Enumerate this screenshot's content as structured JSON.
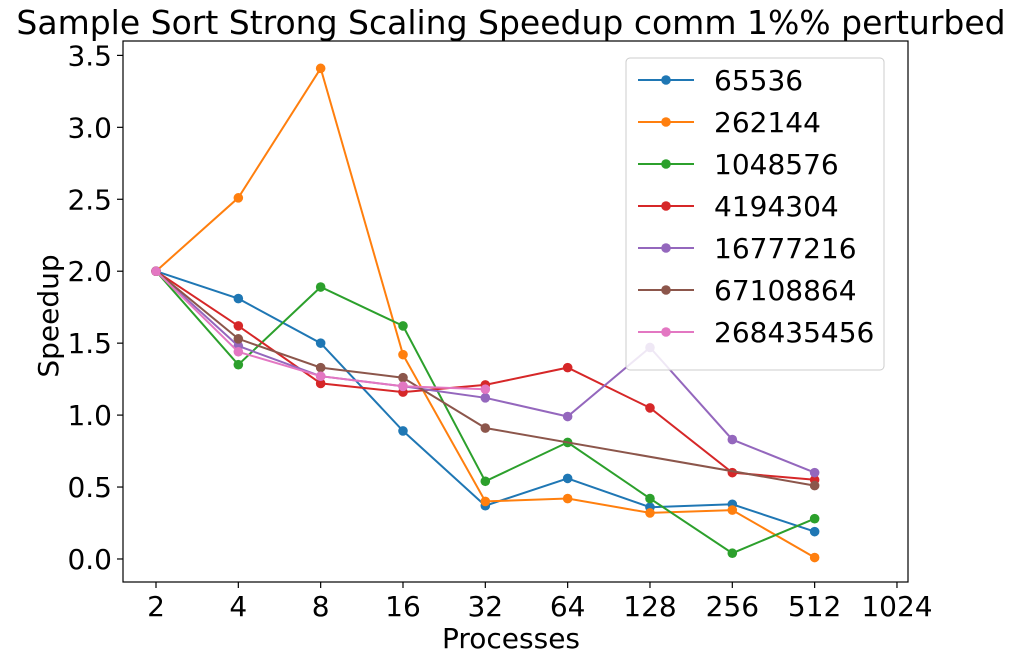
{
  "chart_data": {
    "type": "line",
    "title": "Sample Sort Strong Scaling Speedup comm 1%% perturbed",
    "xlabel": "Processes",
    "ylabel": "Speedup",
    "x_scale": "log2",
    "x_ticks": [
      2,
      4,
      8,
      16,
      32,
      64,
      128,
      256,
      512,
      1024
    ],
    "x_tick_labels": [
      "2",
      "4",
      "8",
      "16",
      "32",
      "64",
      "128",
      "256",
      "512",
      "1024"
    ],
    "y_ticks": [
      0.0,
      0.5,
      1.0,
      1.5,
      2.0,
      2.5,
      3.0,
      3.5
    ],
    "y_tick_labels": [
      "0.0",
      "0.5",
      "1.0",
      "1.5",
      "2.0",
      "2.5",
      "3.0",
      "3.5"
    ],
    "ylim": [
      -0.16,
      3.6
    ],
    "grid": false,
    "legend_position": "top-right",
    "series": [
      {
        "name": "65536",
        "color": "#1f77b4",
        "x": [
          2,
          4,
          8,
          16,
          32,
          64,
          128,
          256,
          512
        ],
        "y": [
          2.0,
          1.81,
          1.5,
          0.89,
          0.37,
          0.56,
          0.36,
          0.38,
          0.19
        ]
      },
      {
        "name": "262144",
        "color": "#ff7f0e",
        "x": [
          2,
          4,
          8,
          16,
          32,
          64,
          128,
          256,
          512
        ],
        "y": [
          2.0,
          2.51,
          3.41,
          1.42,
          0.4,
          0.42,
          0.32,
          0.34,
          0.01
        ]
      },
      {
        "name": "1048576",
        "color": "#2ca02c",
        "x": [
          2,
          4,
          8,
          16,
          32,
          64,
          128,
          256,
          512
        ],
        "y": [
          2.0,
          1.35,
          1.89,
          1.62,
          0.54,
          0.81,
          0.42,
          0.04,
          0.28
        ]
      },
      {
        "name": "4194304",
        "color": "#d62728",
        "x": [
          2,
          4,
          8,
          16,
          32,
          64,
          128,
          256,
          512
        ],
        "y": [
          2.0,
          1.62,
          1.22,
          1.16,
          1.21,
          1.33,
          1.05,
          0.6,
          0.55
        ]
      },
      {
        "name": "16777216",
        "color": "#9467bd",
        "x": [
          2,
          4,
          8,
          16,
          32,
          64,
          128,
          256,
          512
        ],
        "y": [
          2.0,
          1.48,
          1.27,
          1.2,
          1.12,
          0.99,
          1.47,
          0.83,
          0.6
        ]
      },
      {
        "name": "67108864",
        "color": "#8c564b",
        "x": [
          2,
          4,
          8,
          16,
          32,
          512
        ],
        "y": [
          2.0,
          1.53,
          1.33,
          1.26,
          0.91,
          0.51
        ]
      },
      {
        "name": "268435456",
        "color": "#e377c2",
        "x": [
          2,
          4,
          8,
          16,
          32
        ],
        "y": [
          2.0,
          1.44,
          1.27,
          1.2,
          1.18
        ]
      }
    ]
  }
}
